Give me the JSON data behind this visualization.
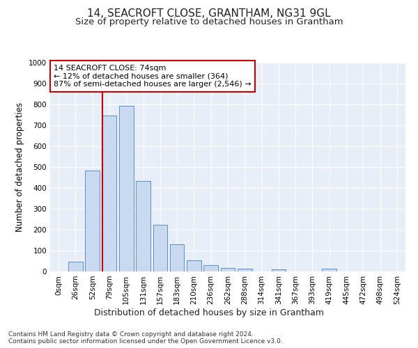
{
  "title": "14, SEACROFT CLOSE, GRANTHAM, NG31 9GL",
  "subtitle": "Size of property relative to detached houses in Grantham",
  "xlabel": "Distribution of detached houses by size in Grantham",
  "ylabel": "Number of detached properties",
  "footer_line1": "Contains HM Land Registry data © Crown copyright and database right 2024.",
  "footer_line2": "Contains public sector information licensed under the Open Government Licence v3.0.",
  "bar_labels": [
    "0sqm",
    "26sqm",
    "52sqm",
    "79sqm",
    "105sqm",
    "131sqm",
    "157sqm",
    "183sqm",
    "210sqm",
    "236sqm",
    "262sqm",
    "288sqm",
    "314sqm",
    "341sqm",
    "367sqm",
    "393sqm",
    "419sqm",
    "445sqm",
    "472sqm",
    "498sqm",
    "524sqm"
  ],
  "bar_values": [
    0,
    47,
    485,
    748,
    793,
    435,
    222,
    130,
    52,
    30,
    18,
    12,
    0,
    10,
    0,
    0,
    12,
    0,
    0,
    0,
    0
  ],
  "ylim": [
    0,
    1000
  ],
  "yticks": [
    0,
    100,
    200,
    300,
    400,
    500,
    600,
    700,
    800,
    900,
    1000
  ],
  "bar_color": "#c9d9f0",
  "bar_edge_color": "#5b8fc9",
  "annotation_text": "14 SEACROFT CLOSE: 74sqm\n← 12% of detached houses are smaller (364)\n87% of semi-detached houses are larger (2,546) →",
  "vline_x": 2.6,
  "vline_color": "#cc0000",
  "annotation_box_color": "#cc0000",
  "plot_bg_color": "#e8eef8",
  "grid_color": "#ffffff",
  "title_fontsize": 11,
  "subtitle_fontsize": 9.5,
  "xlabel_fontsize": 9,
  "ylabel_fontsize": 8.5,
  "annot_fontsize": 8,
  "footer_fontsize": 6.5,
  "tick_fontsize": 7.5
}
